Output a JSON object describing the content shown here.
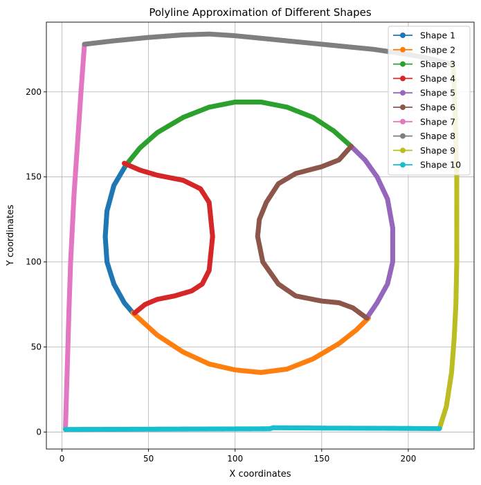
{
  "chart_data": {
    "type": "line",
    "title": "Polyline Approximation of Different Shapes",
    "xlabel": "X coordinates",
    "ylabel": "Y coordinates",
    "xlim": [
      -9,
      238
    ],
    "ylim": [
      -10,
      241
    ],
    "xticks": [
      0,
      50,
      100,
      150,
      200
    ],
    "yticks": [
      0,
      50,
      100,
      150,
      200
    ],
    "grid": true,
    "legend_position": "top-right",
    "marker": "circle",
    "series": [
      {
        "name": "Shape 1",
        "color": "#1f77b4",
        "x": [
          37,
          30,
          26,
          25,
          26,
          30,
          36,
          41
        ],
        "y": [
          157,
          145,
          130,
          115,
          100,
          87,
          76,
          70
        ]
      },
      {
        "name": "Shape 2",
        "color": "#ff7f0e",
        "x": [
          41,
          55,
          70,
          85,
          100,
          115,
          130,
          145,
          160,
          170,
          177
        ],
        "y": [
          70,
          57,
          47,
          40,
          36.5,
          35,
          37,
          43,
          52,
          60,
          67
        ]
      },
      {
        "name": "Shape 3",
        "color": "#2ca02c",
        "x": [
          37,
          45,
          55,
          70,
          85,
          100,
          115,
          130,
          145,
          157,
          167
        ],
        "y": [
          157,
          167,
          176,
          185,
          191,
          194,
          194,
          191,
          185,
          177,
          168
        ]
      },
      {
        "name": "Shape 4",
        "color": "#d62728",
        "x": [
          36,
          45,
          55,
          70,
          80,
          85,
          87,
          85,
          81,
          75,
          65,
          55,
          48,
          42
        ],
        "y": [
          158,
          154,
          151,
          148,
          143,
          135,
          115,
          95,
          87,
          83,
          80,
          78,
          75,
          70
        ]
      },
      {
        "name": "Shape 5",
        "color": "#9467bd",
        "x": [
          167,
          175,
          182,
          188,
          191,
          191,
          188,
          182,
          176
        ],
        "y": [
          168,
          160,
          150,
          137,
          120,
          100,
          87,
          76,
          67
        ]
      },
      {
        "name": "Shape 6",
        "color": "#8c564b",
        "x": [
          167,
          160,
          150,
          135,
          125,
          118,
          114,
          113,
          116,
          125,
          135,
          150,
          160,
          168,
          176
        ],
        "y": [
          168,
          160,
          156,
          152,
          146,
          135,
          125,
          115,
          100,
          87,
          80,
          77,
          76,
          73,
          67
        ]
      },
      {
        "name": "Shape 7",
        "color": "#e377c2",
        "x": [
          13,
          11,
          9,
          7,
          5,
          4,
          3,
          2
        ],
        "y": [
          228,
          200,
          170,
          140,
          100,
          70,
          35,
          2
        ]
      },
      {
        "name": "Shape 8",
        "color": "#7f7f7f",
        "x": [
          13,
          30,
          50,
          70,
          85,
          100,
          120,
          140,
          160,
          180,
          200,
          215,
          226
        ],
        "y": [
          228,
          230,
          232,
          233.5,
          234,
          233,
          231,
          229,
          227,
          225,
          222,
          219,
          216
        ]
      },
      {
        "name": "Shape 9",
        "color": "#bcbd22",
        "x": [
          226,
          227,
          228,
          228,
          227.5,
          226.5,
          225,
          222,
          218
        ],
        "y": [
          216,
          190,
          150,
          100,
          75,
          55,
          35,
          15,
          2
        ]
      },
      {
        "name": "Shape 10",
        "color": "#17becf",
        "x": [
          2,
          30,
          60,
          90,
          120,
          122,
          150,
          180,
          200,
          218
        ],
        "y": [
          1.5,
          1.6,
          1.7,
          1.8,
          1.9,
          2.5,
          2.3,
          2.2,
          2.1,
          2.0
        ]
      }
    ]
  }
}
